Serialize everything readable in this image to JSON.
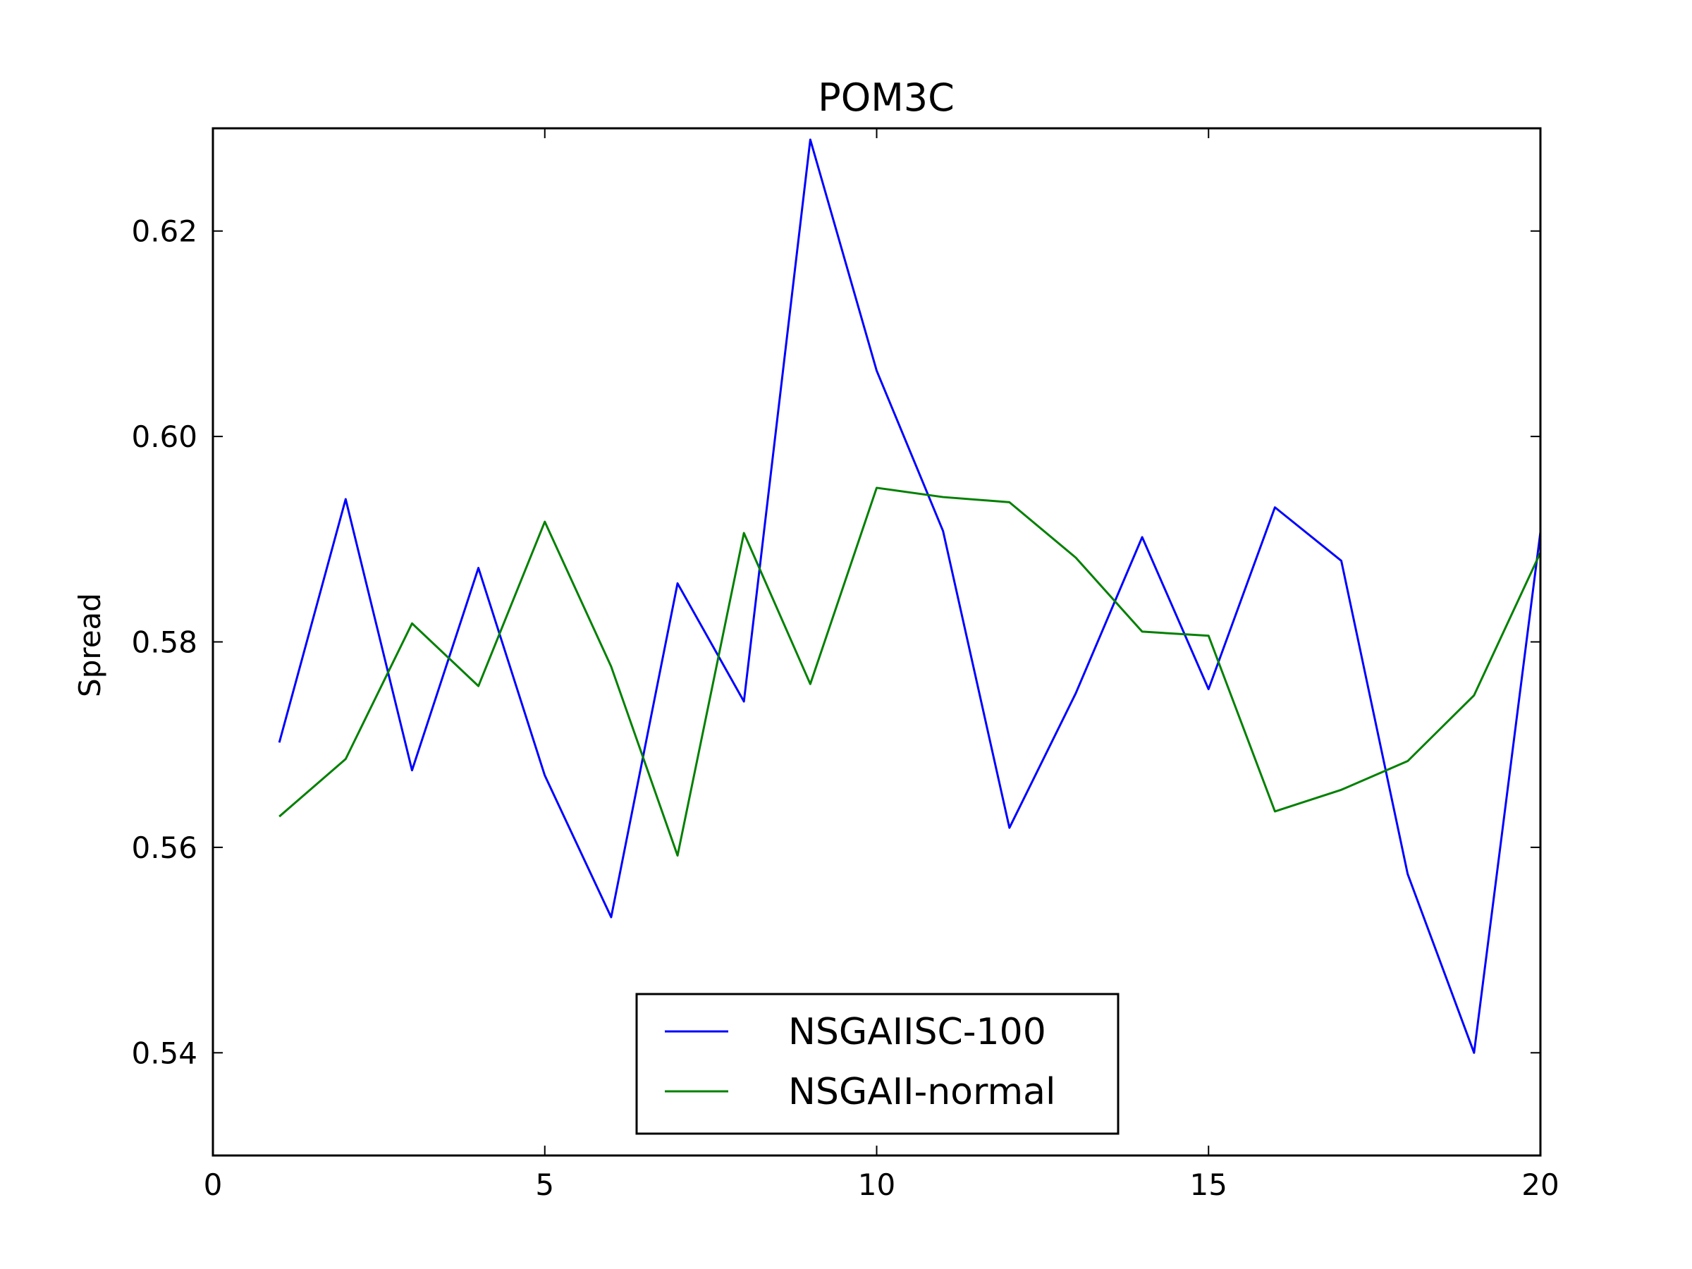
{
  "chart_data": {
    "type": "line",
    "title": "POM3C",
    "xlabel": "",
    "ylabel": "Spread",
    "xlim": [
      0,
      20
    ],
    "ylim": [
      0.53,
      0.63
    ],
    "xticks": [
      0,
      5,
      10,
      15,
      20
    ],
    "xtick_labels": [
      "0",
      "5",
      "10",
      "15",
      "20"
    ],
    "yticks": [
      0.54,
      0.56,
      0.58,
      0.6,
      0.62
    ],
    "ytick_labels": [
      "0.54",
      "0.56",
      "0.58",
      "0.60",
      "0.62"
    ],
    "grid": false,
    "legend_position": "bottom-center",
    "x": [
      1,
      2,
      3,
      4,
      5,
      6,
      7,
      8,
      9,
      10,
      11,
      12,
      13,
      14,
      15,
      16,
      17,
      18,
      19,
      20
    ],
    "series": [
      {
        "name": "NSGAIISC-100",
        "color": "#0000ff",
        "values": [
          0.5702,
          0.5939,
          0.5675,
          0.5872,
          0.567,
          0.5532,
          0.5857,
          0.5742,
          0.6289,
          0.6064,
          0.5908,
          0.5619,
          0.575,
          0.5902,
          0.5754,
          0.5931,
          0.5879,
          0.5574,
          0.54,
          0.5907
        ]
      },
      {
        "name": "NSGAII-normal",
        "color": "#008000",
        "values": [
          0.563,
          0.5686,
          0.5818,
          0.5757,
          0.5917,
          0.5776,
          0.5592,
          0.5906,
          0.5759,
          0.595,
          0.5941,
          0.5936,
          0.5882,
          0.581,
          0.5806,
          0.5635,
          0.5656,
          0.5684,
          0.5748,
          0.5887
        ]
      }
    ]
  }
}
